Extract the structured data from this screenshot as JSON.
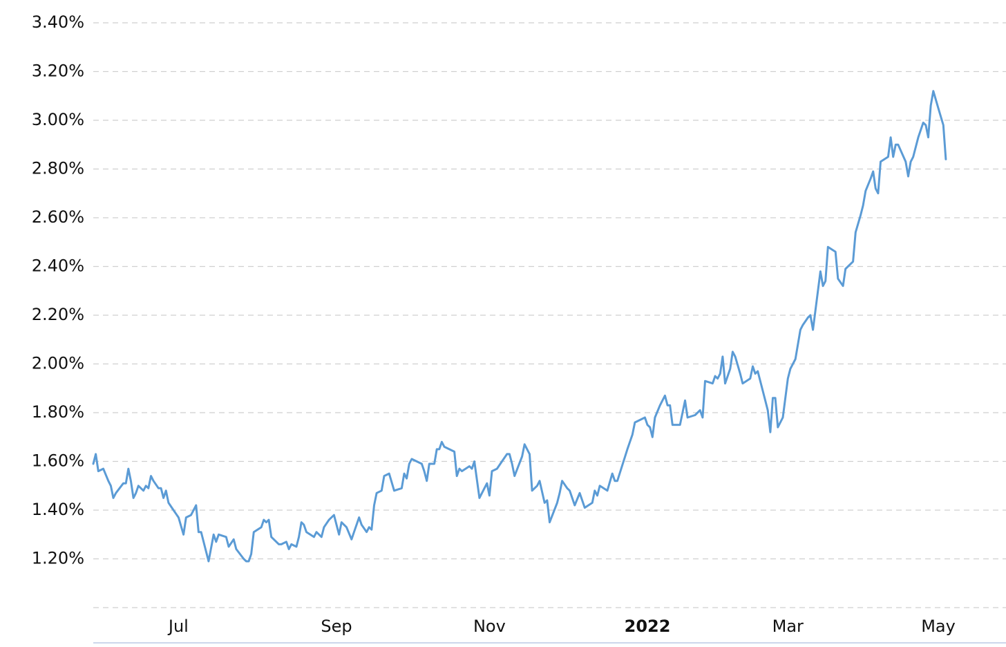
{
  "chart_data": {
    "type": "line",
    "color": "#5b9bd5",
    "x": [
      0,
      1,
      2,
      4,
      6,
      7,
      8,
      9,
      12,
      13,
      14,
      15,
      16,
      17,
      18,
      20,
      21,
      22,
      23,
      24,
      26,
      27,
      28,
      29,
      30,
      32,
      34,
      36,
      37,
      39,
      41,
      42,
      43,
      46,
      48,
      49,
      50,
      53,
      54,
      56,
      57,
      60,
      61,
      62,
      63,
      64,
      67,
      68,
      69,
      70,
      71,
      74,
      75,
      77,
      78,
      79,
      81,
      82,
      83,
      84,
      85,
      88,
      89,
      91,
      92,
      94,
      96,
      98,
      99,
      101,
      103,
      104,
      106,
      107,
      109,
      110,
      111,
      112,
      113,
      115,
      116,
      118,
      120,
      123,
      124,
      125,
      126,
      127,
      131,
      132,
      133,
      134,
      136,
      137,
      138,
      139,
      140,
      144,
      145,
      146,
      147,
      150,
      151,
      152,
      154,
      156,
      157,
      158,
      159,
      161,
      163,
      165,
      166,
      167,
      168,
      171,
      172,
      174,
      175,
      177,
      178,
      180,
      181,
      182,
      185,
      186,
      187,
      189,
      190,
      192,
      194,
      196,
      199,
      200,
      201,
      202,
      205,
      207,
      208,
      209,
      213,
      215,
      216,
      220,
      221,
      222,
      223,
      224,
      226,
      228,
      229,
      230,
      231,
      234,
      236,
      237,
      240,
      242,
      243,
      244,
      247,
      248,
      249,
      250,
      251,
      252,
      254,
      255,
      256,
      258,
      259,
      262,
      263,
      264,
      265,
      268,
      269,
      270,
      271,
      272,
      273,
      275,
      277,
      278,
      280,
      282,
      283,
      285,
      286,
      287,
      288,
      289,
      290,
      291,
      292,
      293,
      296,
      297,
      299,
      300,
      303,
      304,
      306,
      307,
      308,
      310,
      311,
      312,
      313,
      314,
      317,
      318,
      319,
      320,
      321,
      324,
      325,
      326,
      327,
      329,
      331,
      332,
      333,
      334,
      335,
      337,
      339,
      340
    ],
    "values": [
      1.59,
      1.63,
      1.56,
      1.57,
      1.52,
      1.5,
      1.45,
      1.47,
      1.51,
      1.51,
      1.57,
      1.52,
      1.45,
      1.47,
      1.5,
      1.48,
      1.5,
      1.49,
      1.54,
      1.52,
      1.49,
      1.49,
      1.45,
      1.48,
      1.43,
      1.4,
      1.37,
      1.3,
      1.37,
      1.38,
      1.42,
      1.31,
      1.31,
      1.19,
      1.3,
      1.27,
      1.3,
      1.29,
      1.25,
      1.28,
      1.24,
      1.2,
      1.19,
      1.19,
      1.22,
      1.31,
      1.33,
      1.36,
      1.35,
      1.36,
      1.29,
      1.26,
      1.26,
      1.27,
      1.24,
      1.26,
      1.25,
      1.29,
      1.35,
      1.34,
      1.31,
      1.29,
      1.31,
      1.29,
      1.33,
      1.36,
      1.38,
      1.3,
      1.35,
      1.33,
      1.28,
      1.31,
      1.37,
      1.34,
      1.31,
      1.33,
      1.32,
      1.42,
      1.47,
      1.48,
      1.54,
      1.55,
      1.48,
      1.49,
      1.55,
      1.53,
      1.59,
      1.61,
      1.59,
      1.56,
      1.52,
      1.59,
      1.59,
      1.65,
      1.65,
      1.68,
      1.66,
      1.64,
      1.54,
      1.57,
      1.56,
      1.58,
      1.57,
      1.6,
      1.45,
      1.49,
      1.51,
      1.46,
      1.56,
      1.57,
      1.6,
      1.63,
      1.63,
      1.59,
      1.54,
      1.62,
      1.67,
      1.63,
      1.48,
      1.5,
      1.52,
      1.43,
      1.44,
      1.35,
      1.43,
      1.47,
      1.52,
      1.49,
      1.48,
      1.42,
      1.47,
      1.41,
      1.43,
      1.48,
      1.46,
      1.5,
      1.48,
      1.55,
      1.52,
      1.52,
      1.65,
      1.71,
      1.76,
      1.78,
      1.75,
      1.74,
      1.7,
      1.78,
      1.83,
      1.87,
      1.83,
      1.83,
      1.75,
      1.75,
      1.85,
      1.78,
      1.79,
      1.81,
      1.78,
      1.93,
      1.92,
      1.95,
      1.94,
      1.96,
      2.03,
      1.92,
      1.98,
      2.05,
      2.03,
      1.96,
      1.92,
      1.94,
      1.99,
      1.96,
      1.97,
      1.85,
      1.81,
      1.72,
      1.86,
      1.86,
      1.74,
      1.78,
      1.94,
      1.98,
      2.02,
      2.14,
      2.16,
      2.19,
      2.2,
      2.14,
      2.22,
      2.3,
      2.38,
      2.32,
      2.34,
      2.48,
      2.46,
      2.35,
      2.32,
      2.39,
      2.42,
      2.54,
      2.61,
      2.65,
      2.71,
      2.76,
      2.79,
      2.72,
      2.7,
      2.83,
      2.85,
      2.93,
      2.85,
      2.9,
      2.9,
      2.83,
      2.77,
      2.83,
      2.85,
      2.93,
      2.99,
      2.98,
      2.93,
      3.06,
      3.12,
      3.05,
      2.98,
      2.84
    ],
    "xlim": [
      0,
      364
    ],
    "xticks": [
      {
        "value": 34,
        "label": "Jul"
      },
      {
        "value": 97,
        "label": "Sep"
      },
      {
        "value": 158,
        "label": "Nov"
      },
      {
        "value": 221,
        "label": "2022",
        "bold": true
      },
      {
        "value": 277,
        "label": "Mar"
      },
      {
        "value": 337,
        "label": "May"
      }
    ],
    "ylim": [
      1.0,
      3.4
    ],
    "yticks": [
      {
        "value": 1.2,
        "label": "1.20%"
      },
      {
        "value": 1.4,
        "label": "1.40%"
      },
      {
        "value": 1.6,
        "label": "1.60%"
      },
      {
        "value": 1.8,
        "label": "1.80%"
      },
      {
        "value": 2.0,
        "label": "2.00%"
      },
      {
        "value": 2.2,
        "label": "2.20%"
      },
      {
        "value": 2.4,
        "label": "2.40%"
      },
      {
        "value": 2.6,
        "label": "2.60%"
      },
      {
        "value": 2.8,
        "label": "2.80%"
      },
      {
        "value": 3.0,
        "label": "3.00%"
      },
      {
        "value": 3.2,
        "label": "3.20%"
      },
      {
        "value": 3.4,
        "label": "3.40%"
      }
    ],
    "grid": true
  }
}
